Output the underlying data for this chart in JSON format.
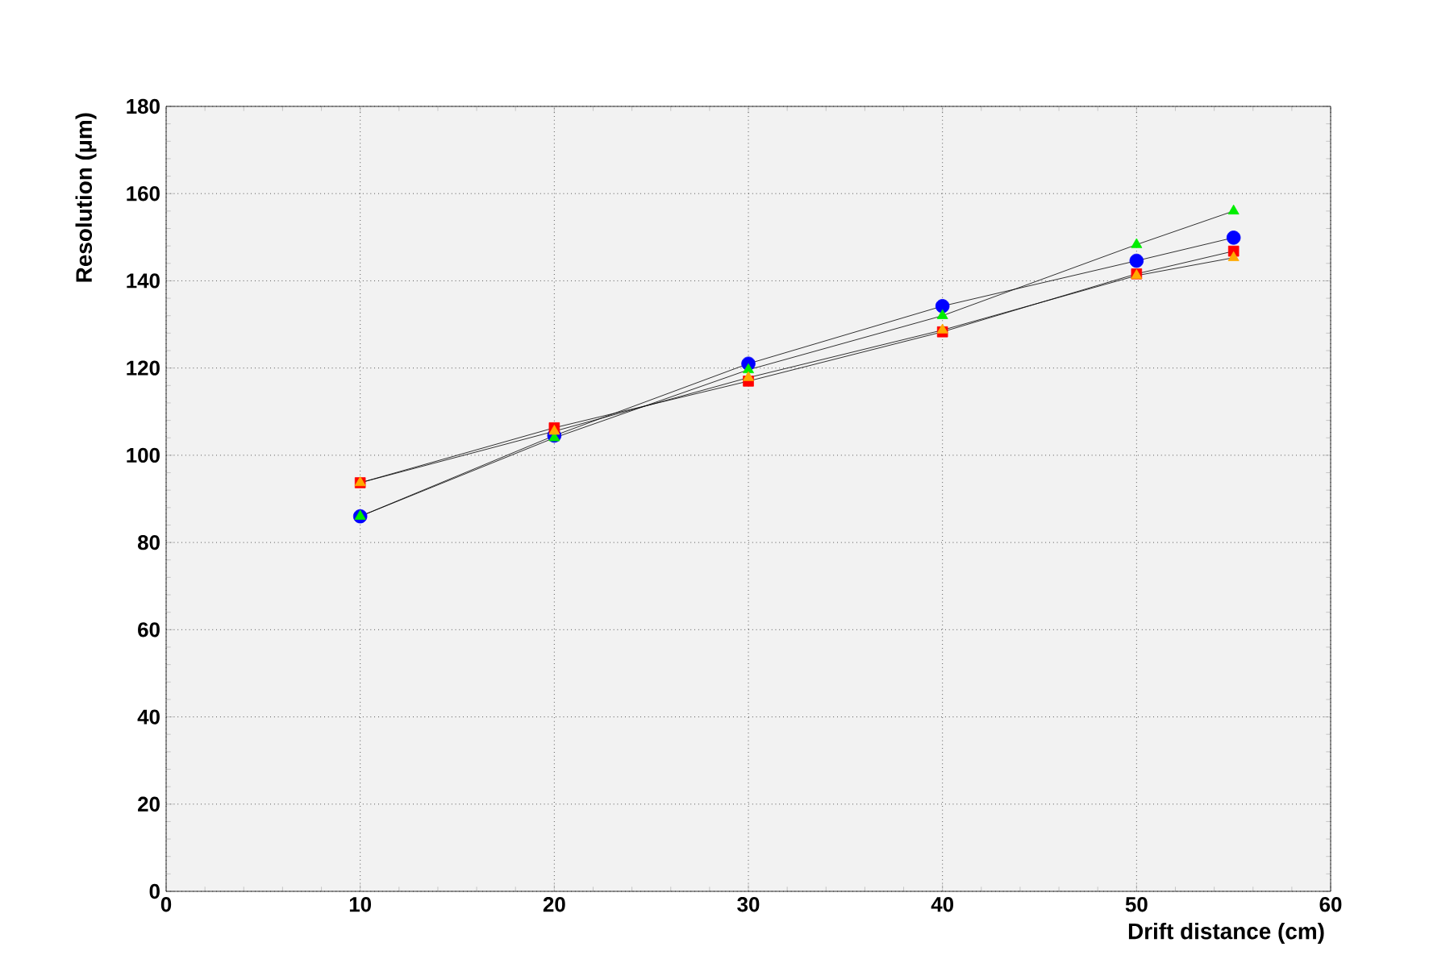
{
  "chart_data": {
    "type": "line",
    "xlabel": "Drift distance (cm)",
    "ylabel": "Resolution (μm)",
    "x": [
      10,
      20,
      30,
      40,
      50,
      55
    ],
    "series": [
      {
        "color": "#0000ff",
        "marker": "circle",
        "values": [
          86,
          104.5,
          121,
          134.2,
          144.6,
          149.9
        ]
      },
      {
        "color": "#00ee00",
        "marker": "triangle",
        "values": [
          86,
          104,
          119.6,
          132,
          148.3,
          156
        ]
      },
      {
        "color": "#ff0000",
        "marker": "square",
        "values": [
          93.7,
          106.3,
          117,
          128.3,
          141.6,
          146.8
        ]
      },
      {
        "color": "#ffaa00",
        "marker": "triangle",
        "values": [
          93.7,
          105.5,
          117.8,
          128.7,
          141.2,
          145.3
        ]
      }
    ],
    "xlim": [
      0,
      60
    ],
    "ylim": [
      0,
      180
    ],
    "xticks": [
      0,
      10,
      20,
      30,
      40,
      50,
      60
    ],
    "yticks": [
      0,
      20,
      40,
      60,
      80,
      100,
      120,
      140,
      160,
      180
    ],
    "grid": true,
    "line_style": "solid"
  }
}
